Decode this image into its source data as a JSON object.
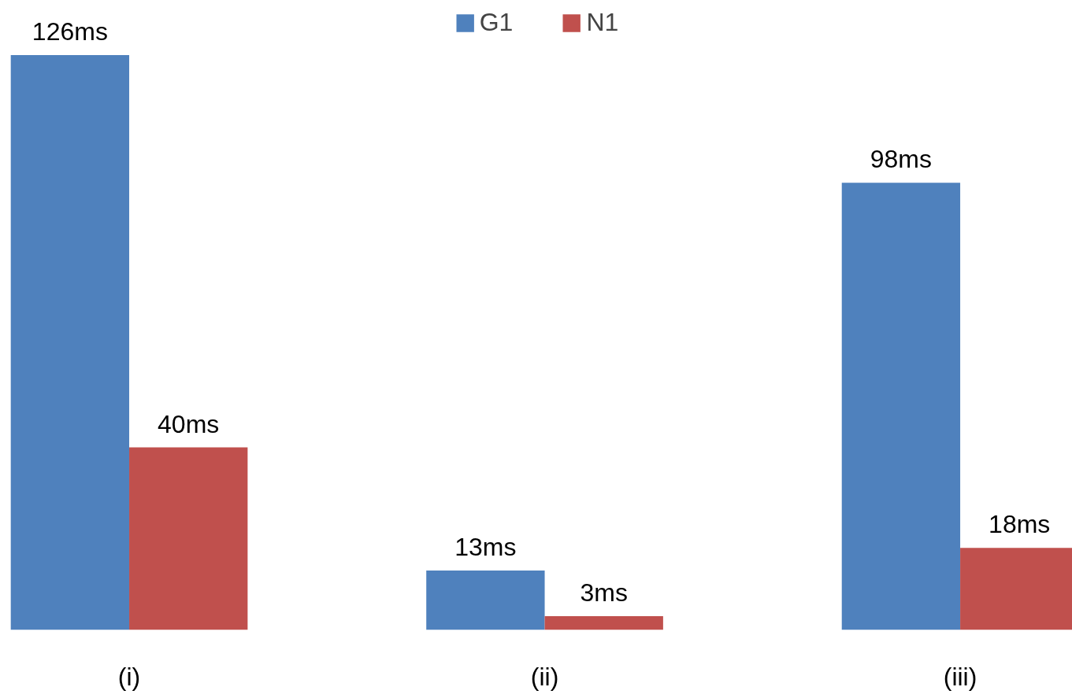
{
  "chart_data": {
    "type": "bar",
    "categories": [
      "(i)",
      "(ii)",
      "(iii)"
    ],
    "series": [
      {
        "name": "G1",
        "color": "#4f81bd",
        "values": [
          126,
          13,
          98
        ],
        "value_labels": [
          "126ms",
          "13ms",
          "98ms"
        ]
      },
      {
        "name": "N1",
        "color": "#c0504d",
        "values": [
          40,
          3,
          18
        ],
        "value_labels": [
          "40ms",
          "3ms",
          "18ms"
        ]
      }
    ],
    "legend": "top",
    "grid": false
  }
}
